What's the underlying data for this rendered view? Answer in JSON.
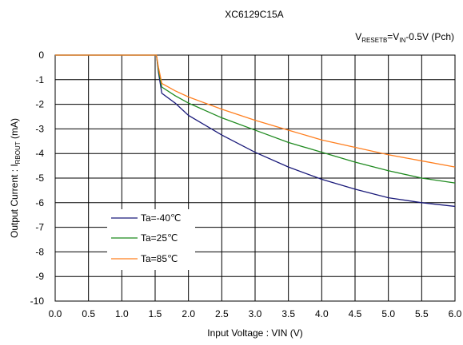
{
  "chart_data": {
    "type": "line",
    "title": "XC6129C15A",
    "subtitle": {
      "base": "V",
      "sub1": "RESETB",
      "mid": "=V",
      "sub2": "IN",
      "tail": "-0.5V (Pch)"
    },
    "xlabel": "Input Voltage : VIN (V)",
    "ylabel": {
      "base": "Output Current : I",
      "sub": "RBOUT",
      "tail": " (mA)"
    },
    "xlim": [
      0,
      6
    ],
    "ylim": [
      -10,
      0
    ],
    "xticks": [
      "0.0",
      "0.5",
      "1.0",
      "1.5",
      "2.0",
      "2.5",
      "3.0",
      "3.5",
      "4.0",
      "4.5",
      "5.0",
      "5.5",
      "6.0"
    ],
    "yticks": [
      "0",
      "-1",
      "-2",
      "-3",
      "-4",
      "-5",
      "-6",
      "-7",
      "-8",
      "-9",
      "-10"
    ],
    "grid": true,
    "legend_position": "lower-left",
    "series": [
      {
        "name": "Ta=-40℃",
        "color": "#1a1a7a",
        "x": [
          0,
          1.5,
          1.52,
          1.55,
          1.6,
          1.8,
          2.0,
          2.5,
          3.0,
          3.5,
          4.0,
          4.5,
          5.0,
          5.5,
          6.0
        ],
        "y": [
          0,
          0,
          0,
          -0.7,
          -1.55,
          -1.95,
          -2.45,
          -3.25,
          -3.95,
          -4.55,
          -5.05,
          -5.45,
          -5.8,
          -6.0,
          -6.15
        ]
      },
      {
        "name": "Ta=25℃",
        "color": "#1f8a1f",
        "x": [
          0,
          1.5,
          1.52,
          1.55,
          1.6,
          1.8,
          2.0,
          2.5,
          3.0,
          3.5,
          4.0,
          4.5,
          5.0,
          5.5,
          6.0
        ],
        "y": [
          0,
          0,
          0,
          -0.6,
          -1.3,
          -1.65,
          -1.95,
          -2.55,
          -3.05,
          -3.55,
          -3.95,
          -4.35,
          -4.7,
          -5.0,
          -5.2
        ]
      },
      {
        "name": "Ta=85℃",
        "color": "#ff7f1f",
        "x": [
          0,
          1.5,
          1.52,
          1.55,
          1.6,
          1.8,
          2.0,
          2.5,
          3.0,
          3.5,
          4.0,
          4.5,
          5.0,
          5.5,
          6.0
        ],
        "y": [
          0,
          0,
          0,
          -0.5,
          -1.15,
          -1.45,
          -1.7,
          -2.2,
          -2.65,
          -3.05,
          -3.45,
          -3.75,
          -4.05,
          -4.3,
          -4.55
        ]
      }
    ]
  }
}
